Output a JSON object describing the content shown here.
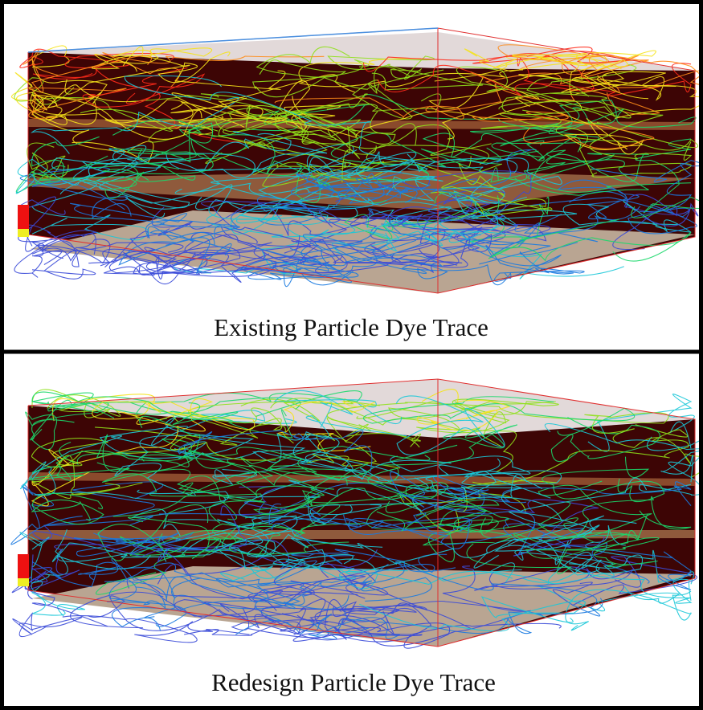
{
  "panels": [
    {
      "caption": "Existing Particle Dye Trace"
    },
    {
      "caption": "Redesign Particle Dye Trace"
    }
  ]
}
